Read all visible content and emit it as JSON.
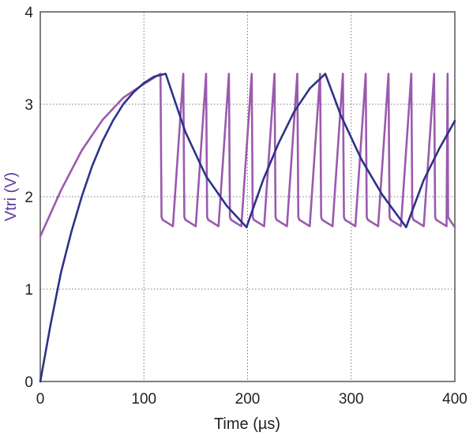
{
  "chart_data": {
    "type": "line",
    "title": "",
    "xlabel": "Time (µs)",
    "ylabel": "Vtri (V)",
    "xlim": [
      0,
      400
    ],
    "ylim": [
      0,
      4
    ],
    "x_ticks": [
      0,
      100,
      200,
      300,
      400
    ],
    "y_ticks": [
      0,
      1,
      2,
      3,
      4
    ],
    "x_tick_labels": [
      "0",
      "100",
      "200",
      "300",
      "400"
    ],
    "y_tick_labels": [
      "0",
      "1",
      "2",
      "3",
      "4"
    ],
    "grid": true,
    "colors": {
      "ylabel": "#5b3a9a",
      "frame": "#555555",
      "grid": "#777777",
      "series_1": "#9a5aae",
      "series_2": "#2e3287"
    },
    "series": [
      {
        "values": [
          [
            0,
            1.57
          ],
          [
            20,
            2.07
          ],
          [
            40,
            2.5
          ],
          [
            60,
            2.83
          ],
          [
            80,
            3.07
          ],
          [
            100,
            3.22
          ],
          [
            116,
            3.33
          ],
          [
            117,
            1.78
          ],
          [
            118,
            1.75
          ],
          [
            128,
            1.68
          ],
          [
            138,
            3.33
          ],
          [
            139,
            1.78
          ],
          [
            140,
            1.75
          ],
          [
            150,
            1.68
          ],
          [
            160,
            3.33
          ],
          [
            161,
            1.78
          ],
          [
            162,
            1.75
          ],
          [
            172,
            1.68
          ],
          [
            182,
            3.33
          ],
          [
            183,
            1.78
          ],
          [
            184,
            1.75
          ],
          [
            194,
            1.68
          ],
          [
            204,
            3.33
          ],
          [
            205,
            1.78
          ],
          [
            206,
            1.75
          ],
          [
            216,
            1.68
          ],
          [
            226,
            3.33
          ],
          [
            227,
            1.78
          ],
          [
            228,
            1.75
          ],
          [
            238,
            1.68
          ],
          [
            248,
            3.33
          ],
          [
            249,
            1.78
          ],
          [
            250,
            1.75
          ],
          [
            260,
            1.68
          ],
          [
            270,
            3.33
          ],
          [
            271,
            1.78
          ],
          [
            272,
            1.75
          ],
          [
            282,
            1.68
          ],
          [
            292,
            3.33
          ],
          [
            293,
            1.78
          ],
          [
            294,
            1.75
          ],
          [
            304,
            1.68
          ],
          [
            314,
            3.33
          ],
          [
            315,
            1.78
          ],
          [
            316,
            1.75
          ],
          [
            326,
            1.68
          ],
          [
            336,
            3.33
          ],
          [
            337,
            1.78
          ],
          [
            338,
            1.75
          ],
          [
            348,
            1.68
          ],
          [
            358,
            3.33
          ],
          [
            359,
            1.78
          ],
          [
            360,
            1.75
          ],
          [
            370,
            1.68
          ],
          [
            380,
            3.33
          ],
          [
            381,
            1.78
          ],
          [
            382,
            1.75
          ],
          [
            392,
            1.68
          ],
          [
            393,
            3.33
          ],
          [
            393.5,
            1.78
          ],
          [
            395,
            1.75
          ],
          [
            400,
            1.67
          ]
        ]
      },
      {
        "values": [
          [
            0,
            0.0
          ],
          [
            10,
            0.62
          ],
          [
            20,
            1.18
          ],
          [
            30,
            1.62
          ],
          [
            40,
            2.0
          ],
          [
            50,
            2.33
          ],
          [
            60,
            2.6
          ],
          [
            70,
            2.82
          ],
          [
            80,
            3.0
          ],
          [
            90,
            3.13
          ],
          [
            100,
            3.23
          ],
          [
            110,
            3.3
          ],
          [
            121,
            3.33
          ],
          [
            140,
            2.7
          ],
          [
            160,
            2.22
          ],
          [
            180,
            1.9
          ],
          [
            199,
            1.67
          ],
          [
            215,
            2.18
          ],
          [
            230,
            2.58
          ],
          [
            245,
            2.92
          ],
          [
            260,
            3.17
          ],
          [
            275,
            3.33
          ],
          [
            290,
            2.88
          ],
          [
            310,
            2.4
          ],
          [
            330,
            2.02
          ],
          [
            353,
            1.67
          ],
          [
            370,
            2.18
          ],
          [
            385,
            2.52
          ],
          [
            400,
            2.82
          ]
        ]
      }
    ]
  }
}
